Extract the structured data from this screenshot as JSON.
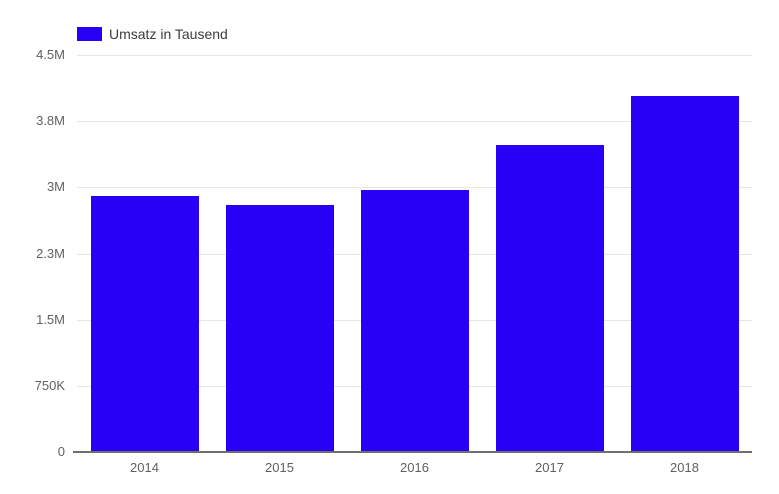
{
  "chart_data": {
    "type": "bar",
    "title": "",
    "xlabel": "",
    "ylabel": "",
    "legend": {
      "label": "Umsatz in Tausend",
      "position": "top"
    },
    "categories": [
      "2014",
      "2015",
      "2016",
      "2017",
      "2018"
    ],
    "series": [
      {
        "name": "Umsatz in Tausend",
        "color": "#2800f5",
        "values": [
          2900000,
          2800000,
          2975000,
          3475000,
          4030000
        ]
      }
    ],
    "ylim": [
      0,
      4500000
    ],
    "yticks": [
      {
        "value": 0,
        "label": "0"
      },
      {
        "value": 750000,
        "label": "750K"
      },
      {
        "value": 1500000,
        "label": "1.5M"
      },
      {
        "value": 2250000,
        "label": "2.3M"
      },
      {
        "value": 3000000,
        "label": "3M"
      },
      {
        "value": 3750000,
        "label": "3.8M"
      },
      {
        "value": 4500000,
        "label": "4.5M"
      }
    ],
    "grid": true
  },
  "colors": {
    "bar": "#2800f5",
    "grid": "#e6e6e6",
    "axis_line": "#6f6f6f",
    "tick_text": "#616161",
    "legend_text": "#3c3c3c",
    "background": "#ffffff"
  }
}
